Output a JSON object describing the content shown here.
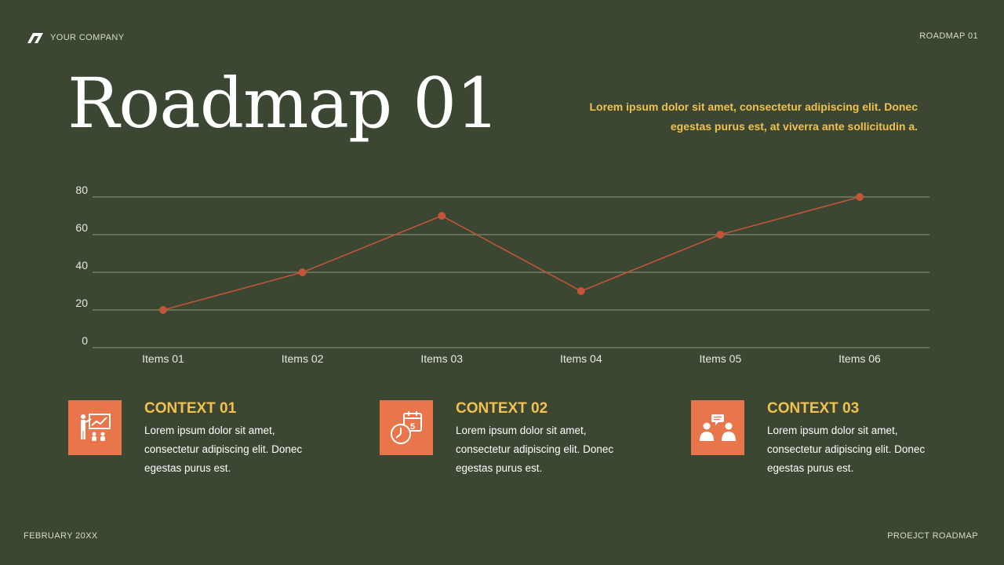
{
  "header": {
    "company": "YOUR COMPANY",
    "top_right": "ROADMAP 01"
  },
  "title": "Roadmap 01",
  "intro": "Lorem ipsum dolor sit amet, consectetur adipiscing elit. Donec egestas purus est, at viverra ante sollicitudin a.",
  "chart_data": {
    "type": "line",
    "categories": [
      "Items 01",
      "Items 02",
      "Items 03",
      "Items 04",
      "Items 05",
      "Items 06"
    ],
    "values": [
      20,
      40,
      70,
      30,
      60,
      80
    ],
    "yticks": [
      0,
      20,
      40,
      60,
      80
    ],
    "ylim": [
      0,
      80
    ],
    "grid": true,
    "colors": {
      "line": "#c0553a",
      "grid": "#7d8a6c"
    }
  },
  "contexts": [
    {
      "title": "CONTEXT 01",
      "text": "Lorem ipsum dolor sit amet, consectetur adipiscing elit. Donec egestas purus est.",
      "icon": "presentation-icon"
    },
    {
      "title": "CONTEXT 02",
      "text": "Lorem ipsum dolor sit amet, consectetur adipiscing elit. Donec egestas purus est.",
      "icon": "calendar-clock-icon"
    },
    {
      "title": "CONTEXT 03",
      "text": "Lorem ipsum dolor sit amet, consectetur adipiscing elit. Donec egestas purus est.",
      "icon": "meeting-icon"
    }
  ],
  "footer": {
    "left": "FEBRUARY 20XX",
    "right": "PROEJCT ROADMAP"
  },
  "colors": {
    "background": "#3b4732",
    "accent": "#e8764a",
    "highlight": "#f2c14e"
  }
}
